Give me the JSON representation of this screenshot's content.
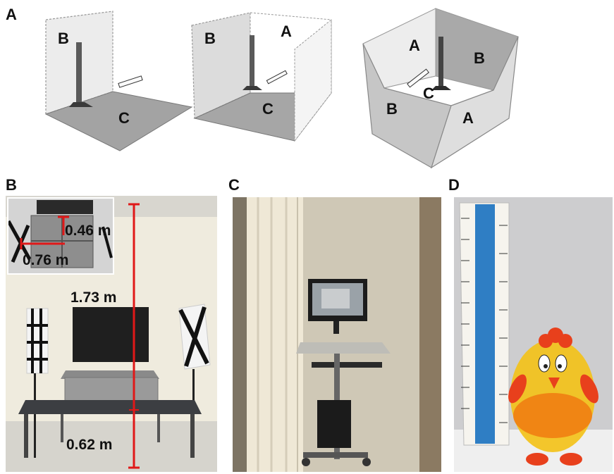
{
  "panels": {
    "a": "A",
    "b": "B",
    "c": "C",
    "d": "D"
  },
  "diagram": {
    "box1": {
      "wall": "B",
      "floor": "C"
    },
    "box2": {
      "left_wall": "B",
      "back_wall": "A",
      "floor": "C"
    },
    "box3": {
      "back_a": "A",
      "back_b": "B",
      "center": "C",
      "front_b": "B",
      "front_a": "A"
    }
  },
  "measurements": {
    "inset_depth": "0.46 m",
    "inset_width": "0.76 m",
    "height": "1.73 m",
    "table_height": "0.62 m"
  },
  "colors": {
    "measure_red": "#e01818",
    "wall_light": "#e6e6e6",
    "floor_gray": "#9a9a9a",
    "toy_yellow": "#f3c21a",
    "toy_red": "#e8401c"
  }
}
